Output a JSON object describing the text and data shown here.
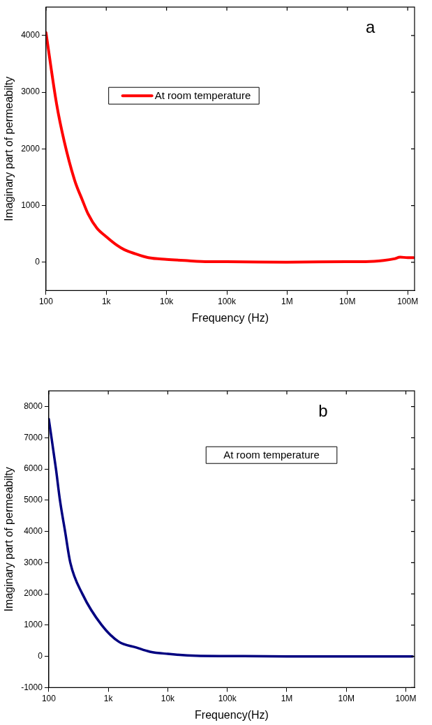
{
  "chart_data": [
    {
      "type": "line",
      "xlabel": "Frequency (Hz)",
      "ylabel": "Imaginary part of permeabilty",
      "annotations": [
        "a"
      ],
      "legend": "top",
      "log": "x",
      "xlim": [
        100,
        130000000
      ],
      "ylim": [
        -500,
        4500
      ],
      "xticks": [
        {
          "value": 100,
          "label": "100"
        },
        {
          "value": 1000,
          "label": "1k"
        },
        {
          "value": 10000,
          "label": "10k"
        },
        {
          "value": 100000,
          "label": "100k"
        },
        {
          "value": 1000000,
          "label": "1M"
        },
        {
          "value": 10000000,
          "label": "10M"
        },
        {
          "value": 100000000,
          "label": "100M"
        }
      ],
      "yticks": [
        0,
        1000,
        2000,
        3000,
        4000
      ],
      "x": [
        100,
        150,
        200,
        300,
        400,
        500,
        700,
        1000,
        1500,
        2000,
        3000,
        5000,
        10000,
        20000,
        50000,
        100000,
        1000000,
        10000000,
        20000000,
        40000000,
        60000000,
        75000000,
        100000000,
        125000000
      ],
      "series": [
        {
          "name": "At room temperature",
          "color": "#ff0000",
          "values": [
            4050,
            2790,
            2140,
            1440,
            1100,
            850,
            600,
            450,
            300,
            220,
            150,
            80,
            50,
            30,
            10,
            10,
            0,
            10,
            10,
            30,
            60,
            90,
            80,
            80
          ]
        }
      ]
    },
    {
      "type": "line",
      "xlabel": "Frequency(Hz)",
      "ylabel": "Imaginary part of permeabilty",
      "annotations": [
        "b",
        "At room temperature"
      ],
      "log": "x",
      "xlim": [
        100,
        140000000
      ],
      "ylim": [
        -1000,
        8500
      ],
      "xticks": [
        {
          "value": 100,
          "label": "100"
        },
        {
          "value": 1000,
          "label": "1k"
        },
        {
          "value": 10000,
          "label": "10k"
        },
        {
          "value": 100000,
          "label": "100k"
        },
        {
          "value": 1000000,
          "label": "1M"
        },
        {
          "value": 10000000,
          "label": "10M"
        },
        {
          "value": 100000000,
          "label": "100M"
        }
      ],
      "yticks": [
        -1000,
        0,
        1000,
        2000,
        3000,
        4000,
        5000,
        6000,
        7000,
        8000
      ],
      "x": [
        100,
        132,
        154,
        188,
        230,
        367,
        776,
        1500,
        3000,
        5000,
        10000,
        30000,
        100000,
        1000000,
        10000000,
        130000000
      ],
      "series": [
        {
          "color": "#000080",
          "values": [
            7600,
            6000,
            5000,
            4000,
            3000,
            2000,
            1000,
            470,
            280,
            150,
            80,
            20,
            10,
            0,
            0,
            0
          ]
        }
      ]
    }
  ]
}
